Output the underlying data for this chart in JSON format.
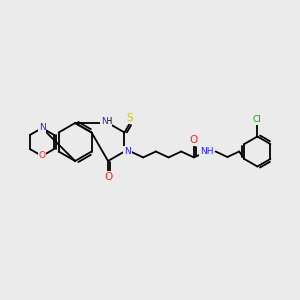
{
  "bg_color": "#ebebeb",
  "bond_color": "#000000",
  "bond_width": 1.3,
  "atom_colors": {
    "N": "#2020ff",
    "O": "#ff2020",
    "S": "#cccc00",
    "Cl": "#00aa00",
    "C": "#000000",
    "H": "#000000"
  },
  "font_size": 6.5,
  "figsize": [
    3.0,
    3.0
  ],
  "dpi": 100
}
